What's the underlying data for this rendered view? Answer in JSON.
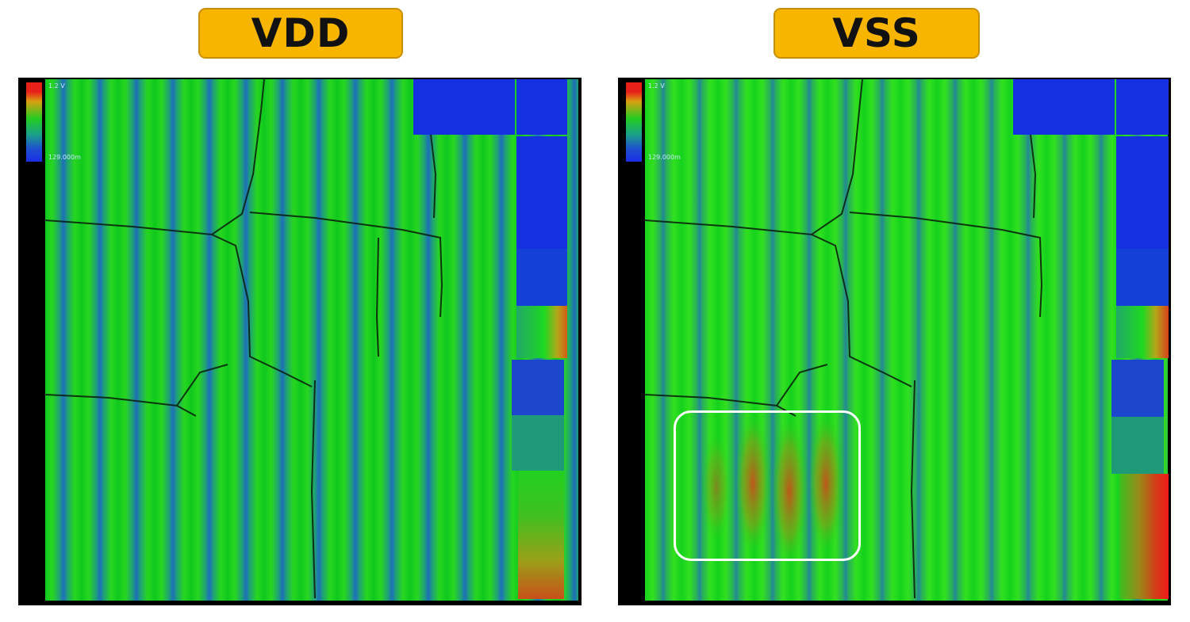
{
  "labels": {
    "vdd": "VDD",
    "vss": "VSS"
  },
  "color_scale": {
    "max_label": "1.2 V",
    "min_label": "129.000m",
    "colors": {
      "high": "#e8201a",
      "mid": "#22cc22",
      "low": "#1a2ee6"
    }
  },
  "label_color": "#f7b500"
}
